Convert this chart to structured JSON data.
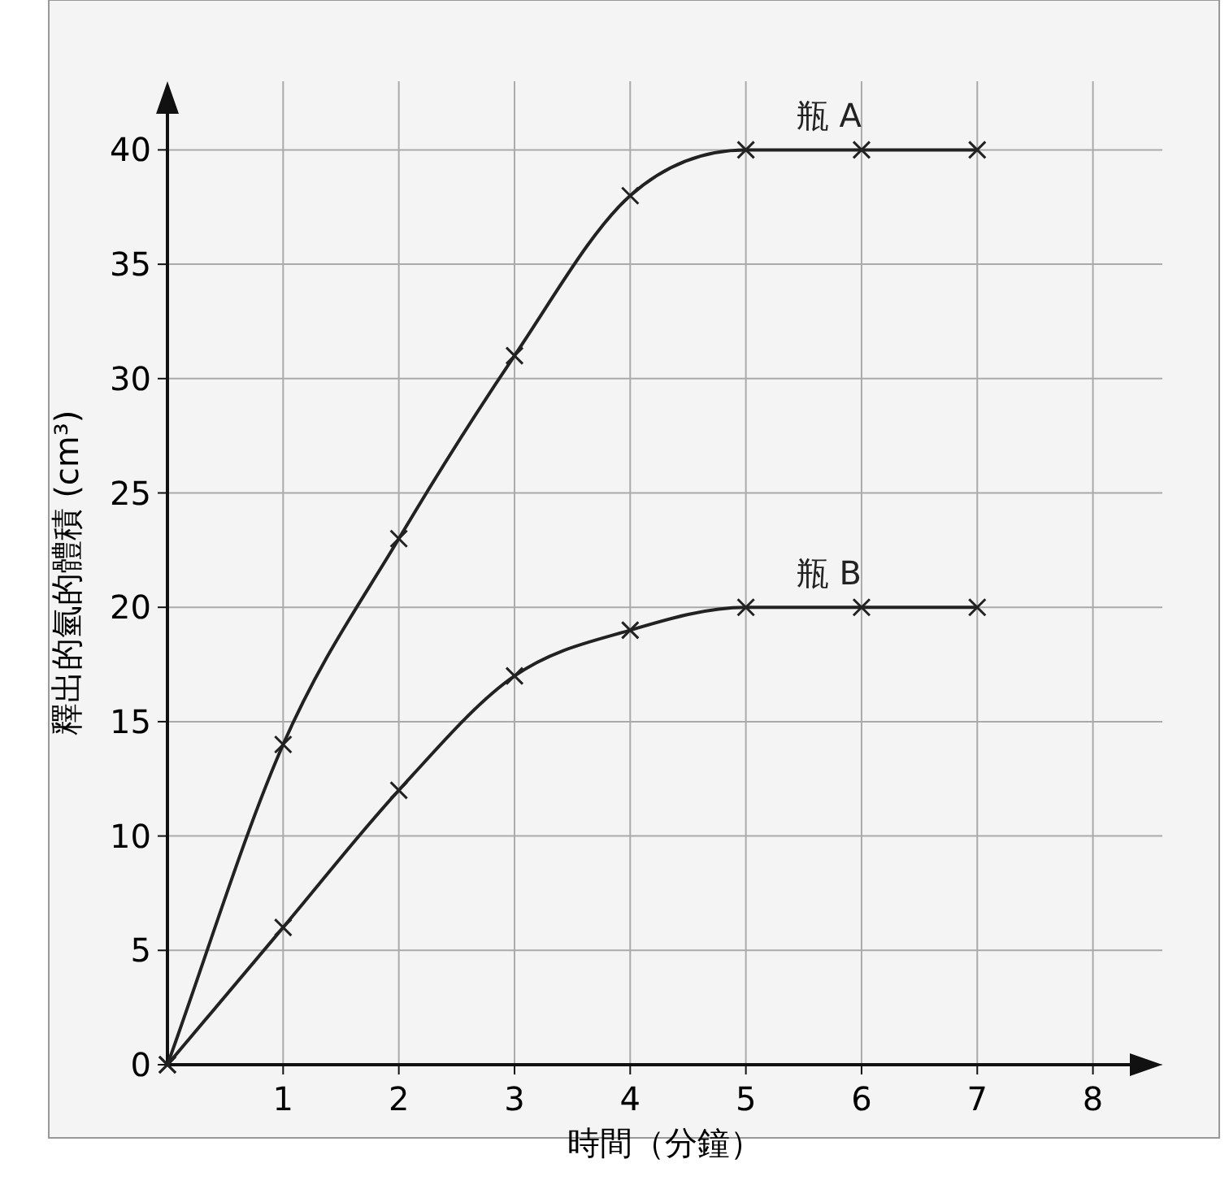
{
  "chart_data": {
    "type": "line",
    "xlabel": "時間（分鐘）",
    "ylabel": "釋出的氫的體積 (cm³)",
    "x": [
      0,
      1,
      2,
      3,
      4,
      5,
      6,
      7
    ],
    "series": [
      {
        "name": "瓶 A",
        "color": "#222222",
        "values": [
          0,
          14,
          23,
          31,
          38,
          40,
          40,
          40
        ]
      },
      {
        "name": "瓶 B",
        "color": "#222222",
        "values": [
          0,
          6,
          12,
          17,
          19,
          20,
          20,
          20
        ]
      }
    ],
    "xlim": [
      0,
      8.6
    ],
    "ylim": [
      0,
      43
    ],
    "xticks": [
      1,
      2,
      3,
      4,
      5,
      6,
      7,
      8
    ],
    "yticks": [
      0,
      5,
      10,
      15,
      20,
      25,
      30,
      35,
      40
    ],
    "grid": true,
    "legend": false,
    "marker": "cross",
    "line_style": "solid"
  }
}
